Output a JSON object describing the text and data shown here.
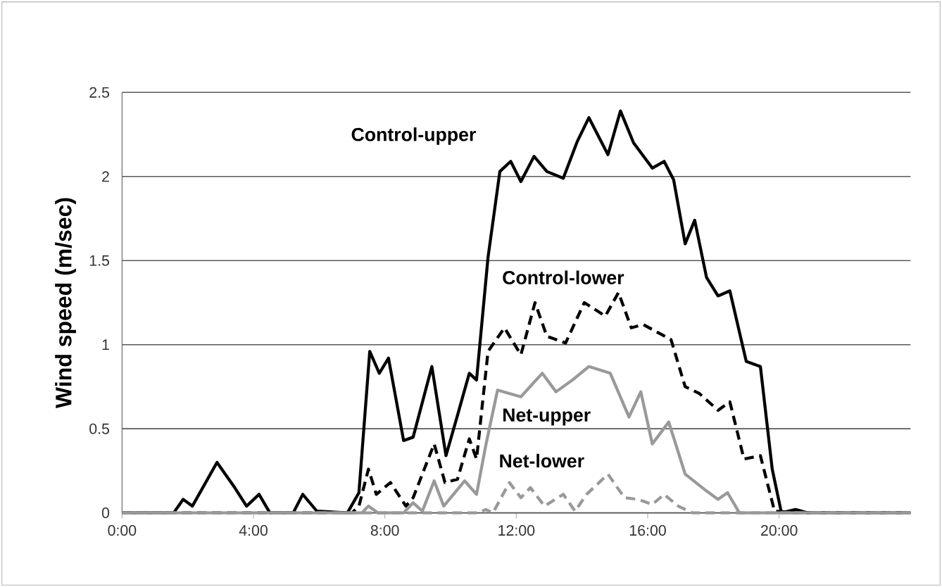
{
  "chart_data": {
    "type": "line",
    "ylabel": "Wind speed (m/sec)",
    "xlim": [
      0,
      24
    ],
    "ylim": [
      0,
      2.5
    ],
    "xticks": [
      {
        "value": 0,
        "label": "0:00"
      },
      {
        "value": 4,
        "label": "4:00"
      },
      {
        "value": 8,
        "label": "8:00"
      },
      {
        "value": 12,
        "label": "12:00"
      },
      {
        "value": 16,
        "label": "16:00"
      },
      {
        "value": 20,
        "label": "20:00"
      }
    ],
    "yticks": [
      0,
      0.5,
      1,
      1.5,
      2,
      2.5
    ],
    "grid": "y",
    "legend": false,
    "marker": "none",
    "series": [
      {
        "name": "Control-upper",
        "color": "#000000",
        "line_style": "solid",
        "x": [
          0,
          1.57,
          1.86,
          2.14,
          2.89,
          3.43,
          3.79,
          4.17,
          4.5,
          5.21,
          5.5,
          5.93,
          6.86,
          7.21,
          7.54,
          7.83,
          8.11,
          8.57,
          8.86,
          9.43,
          9.86,
          10.21,
          10.57,
          10.79,
          11.14,
          11.5,
          11.83,
          12.14,
          12.54,
          12.93,
          13.43,
          13.86,
          14.21,
          14.79,
          15.17,
          15.57,
          16.14,
          16.5,
          16.79,
          17.14,
          17.43,
          17.79,
          18.14,
          18.5,
          19.0,
          19.43,
          19.79,
          20.07,
          20.5,
          20.86,
          24
        ],
        "values": [
          0,
          0,
          0.08,
          0.04,
          0.3,
          0.15,
          0.04,
          0.11,
          0,
          0,
          0.11,
          0.01,
          0,
          0.12,
          0.96,
          0.83,
          0.92,
          0.43,
          0.45,
          0.87,
          0.34,
          0.58,
          0.83,
          0.79,
          1.52,
          2.03,
          2.09,
          1.97,
          2.12,
          2.03,
          1.99,
          2.21,
          2.35,
          2.13,
          2.39,
          2.2,
          2.05,
          2.09,
          1.98,
          1.6,
          1.74,
          1.4,
          1.29,
          1.32,
          0.9,
          0.87,
          0.26,
          0,
          0.02,
          0,
          0
        ]
      },
      {
        "name": "Control-lower",
        "color": "#000000",
        "line_style": "dashed",
        "x": [
          0,
          7.0,
          7.21,
          7.5,
          7.74,
          8.17,
          8.64,
          8.86,
          9.5,
          9.83,
          10.21,
          10.57,
          10.79,
          11.14,
          11.64,
          12.14,
          12.57,
          12.93,
          13.5,
          14.07,
          14.71,
          15.11,
          15.5,
          15.86,
          16.71,
          17.14,
          17.57,
          18.14,
          18.5,
          18.93,
          19.43,
          19.86,
          20.5,
          24
        ],
        "values": [
          0,
          0,
          0.04,
          0.26,
          0.11,
          0.18,
          0.04,
          0.09,
          0.41,
          0.18,
          0.2,
          0.44,
          0.32,
          0.96,
          1.1,
          0.94,
          1.25,
          1.05,
          1.01,
          1.25,
          1.17,
          1.31,
          1.1,
          1.12,
          1.03,
          0.75,
          0.71,
          0.61,
          0.66,
          0.32,
          0.34,
          0.01,
          0,
          0
        ]
      },
      {
        "name": "Net-upper",
        "color": "#999999",
        "line_style": "solid",
        "x": [
          0,
          7.3,
          7.5,
          7.79,
          8.57,
          8.86,
          9.14,
          9.5,
          9.79,
          10.43,
          10.79,
          11.07,
          11.43,
          12.14,
          12.79,
          13.21,
          13.71,
          14.21,
          14.86,
          15.43,
          15.79,
          16.14,
          16.64,
          17.14,
          17.79,
          18.14,
          18.43,
          18.79,
          24
        ],
        "values": [
          0,
          0,
          0.04,
          0,
          0,
          0.06,
          0.01,
          0.19,
          0.04,
          0.19,
          0.11,
          0.4,
          0.73,
          0.69,
          0.83,
          0.72,
          0.79,
          0.87,
          0.83,
          0.57,
          0.72,
          0.41,
          0.54,
          0.23,
          0.13,
          0.08,
          0.12,
          0,
          0
        ]
      },
      {
        "name": "Net-lower",
        "color": "#999999",
        "line_style": "dashed",
        "x": [
          0,
          10.86,
          11.07,
          11.29,
          11.79,
          12.14,
          12.43,
          12.86,
          13.43,
          13.79,
          14.14,
          14.79,
          15.29,
          15.71,
          16.14,
          16.5,
          16.93,
          17.36,
          24
        ],
        "values": [
          0,
          0,
          0.02,
          0,
          0.18,
          0.09,
          0.15,
          0.04,
          0.11,
          0.01,
          0.11,
          0.23,
          0.09,
          0.08,
          0.05,
          0.11,
          0.04,
          0,
          0
        ]
      }
    ]
  }
}
